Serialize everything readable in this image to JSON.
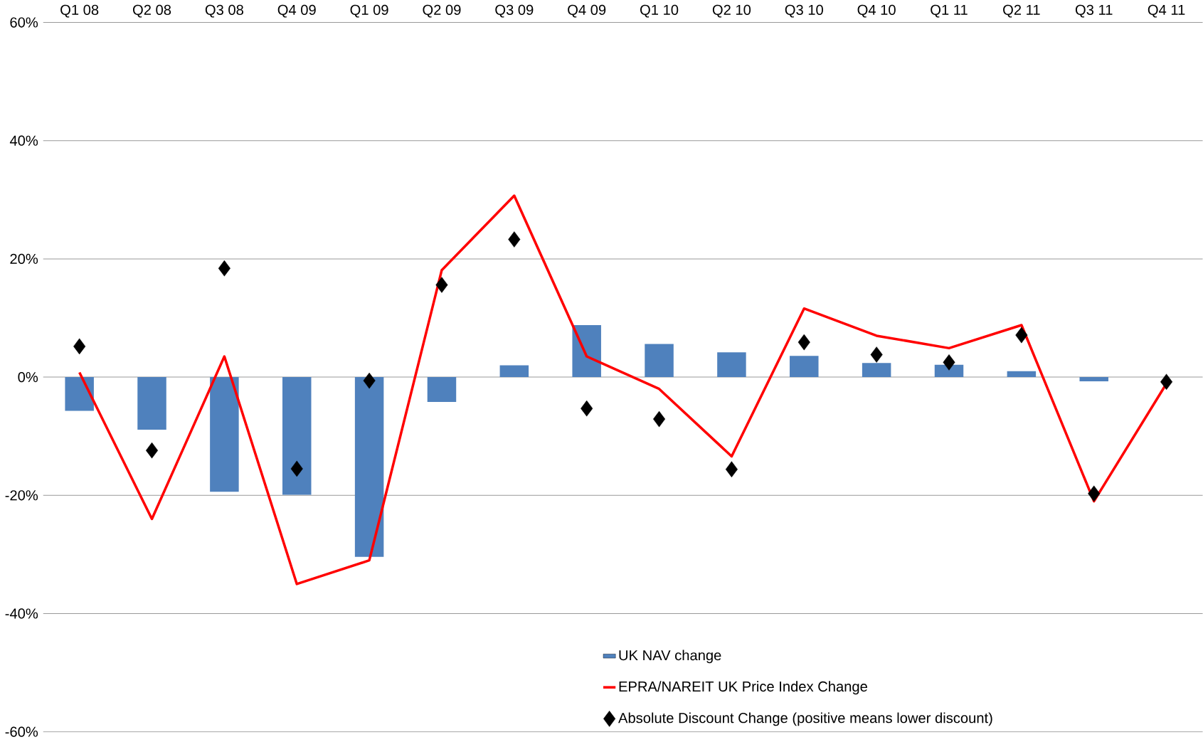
{
  "chart_data": {
    "type": "bar",
    "categories": [
      "Q1 08",
      "Q2 08",
      "Q3 08",
      "Q4 09",
      "Q1 09",
      "Q2 09",
      "Q3 09",
      "Q4 09",
      "Q1 10",
      "Q2 10",
      "Q3 10",
      "Q4 10",
      "Q1 11",
      "Q2 11",
      "Q3 11",
      "Q4 11"
    ],
    "series": [
      {
        "name": "UK NAV change",
        "type": "bar",
        "color": "#4f81bd",
        "values": [
          -5.7,
          -8.9,
          -19.4,
          -19.9,
          -30.4,
          -4.2,
          2.0,
          8.8,
          5.6,
          4.2,
          3.6,
          2.4,
          2.1,
          1.0,
          -0.7,
          null
        ]
      },
      {
        "name": "EPRA/NAREIT UK Price Index Change",
        "type": "line",
        "color": "#ff0000",
        "marker": "none",
        "values": [
          0.8,
          -24,
          3.5,
          -35,
          -31,
          18.1,
          30.7,
          3.5,
          -2.0,
          -13.4,
          11.6,
          7.0,
          4.9,
          8.8,
          -21,
          -1.1
        ]
      },
      {
        "name": "Absolute Discount Change (positive means lower discount)",
        "type": "scatter",
        "color": "#000000",
        "marker": "diamond",
        "values": [
          5.2,
          -12.4,
          18.4,
          -15.5,
          -0.6,
          15.6,
          23.3,
          -5.3,
          -7.1,
          -15.6,
          5.9,
          3.8,
          2.5,
          7.1,
          -19.7,
          -0.8
        ]
      }
    ],
    "ylim": [
      -60,
      60
    ],
    "yticks": [
      {
        "value": -60,
        "label": "-60%"
      },
      {
        "value": -40,
        "label": "-40%"
      },
      {
        "value": -20,
        "label": "-20%"
      },
      {
        "value": 0,
        "label": "0%"
      },
      {
        "value": 20,
        "label": "20%"
      },
      {
        "value": 40,
        "label": "40%"
      },
      {
        "value": 60,
        "label": "60%"
      }
    ],
    "grid": "y",
    "legend": "bottom"
  }
}
